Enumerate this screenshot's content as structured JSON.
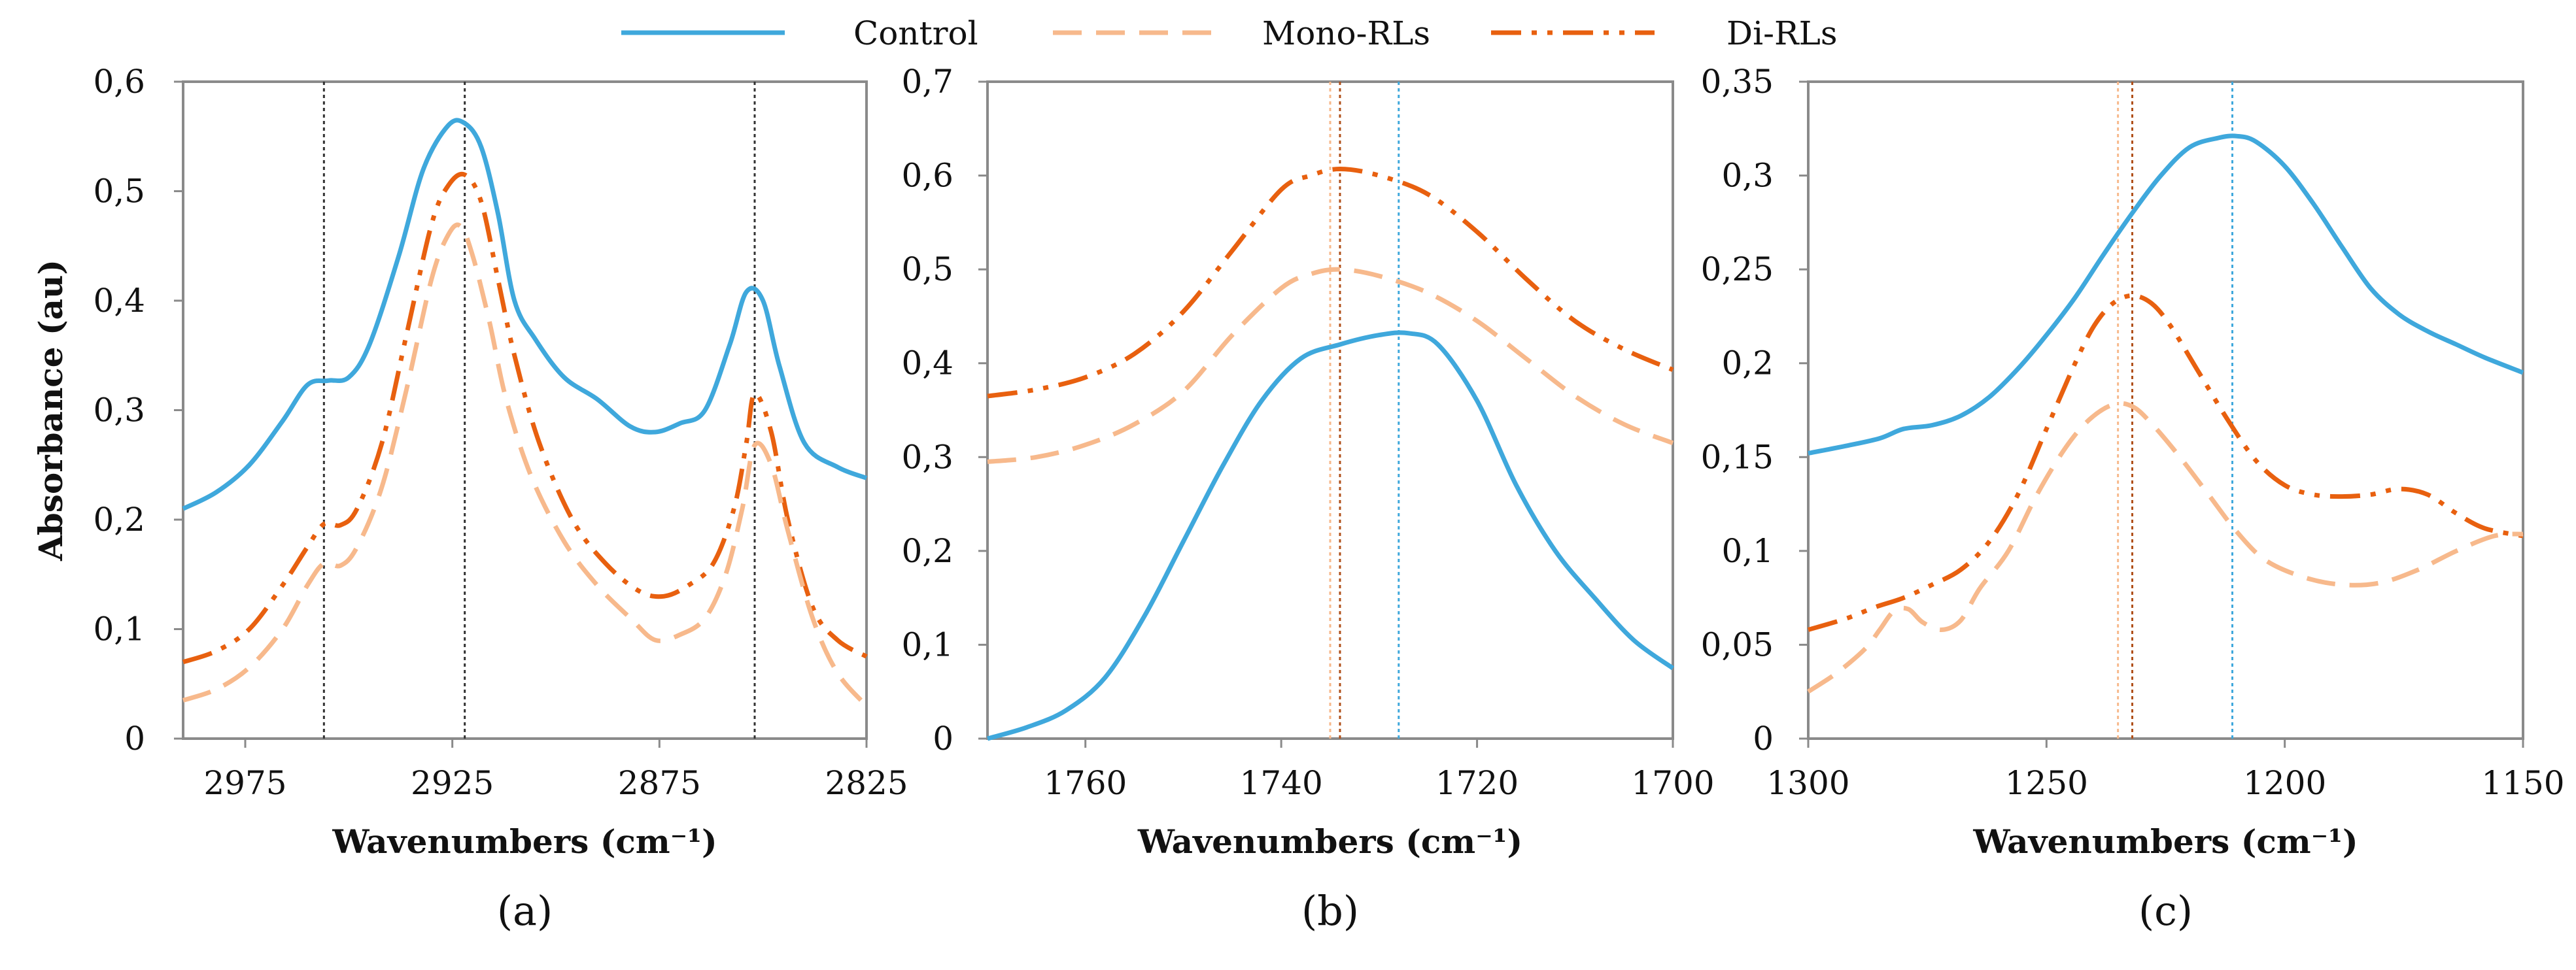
{
  "legend": [
    {
      "name": "Control",
      "color": "#3fa8dc",
      "style": "solid"
    },
    {
      "name": "Mono-RLs",
      "color": "#f7b98c",
      "style": "dashed"
    },
    {
      "name": "Di-RLs",
      "color": "#e8600f",
      "style": "dashdotdot"
    }
  ],
  "chart_data": [
    {
      "type": "line",
      "panel_label": "(a)",
      "xlabel": "Wavenumbers (cm⁻¹)",
      "ylabel": "Absorbance (au)",
      "xlim": [
        2990,
        2825
      ],
      "ylim": [
        0,
        0.6
      ],
      "xticks": [
        2975,
        2925,
        2875,
        2825
      ],
      "xtick_labels": [
        "2975",
        "2925",
        "2875",
        "2825"
      ],
      "yticks": [
        0,
        0.1,
        0.2,
        0.3,
        0.4,
        0.5,
        0.6
      ],
      "ytick_labels": [
        "0",
        "0,1",
        "0,2",
        "0,3",
        "0,4",
        "0,5",
        "0,6"
      ],
      "vlines": [
        {
          "x": 2956,
          "color": "#333333"
        },
        {
          "x": 2922,
          "color": "#333333"
        },
        {
          "x": 2852,
          "color": "#333333"
        }
      ],
      "series": [
        {
          "name": "Control",
          "x": [
            2990,
            2982,
            2974,
            2966,
            2960,
            2955,
            2950,
            2945,
            2938,
            2932,
            2926,
            2922,
            2918,
            2914,
            2910,
            2905,
            2898,
            2890,
            2882,
            2876,
            2870,
            2864,
            2858,
            2854,
            2850,
            2846,
            2840,
            2832,
            2825
          ],
          "values": [
            0.21,
            0.225,
            0.25,
            0.29,
            0.323,
            0.327,
            0.33,
            0.36,
            0.44,
            0.52,
            0.56,
            0.562,
            0.54,
            0.48,
            0.4,
            0.365,
            0.33,
            0.31,
            0.285,
            0.28,
            0.288,
            0.3,
            0.36,
            0.408,
            0.4,
            0.34,
            0.27,
            0.248,
            0.238
          ]
        },
        {
          "name": "Mono-RLs",
          "x": [
            2990,
            2982,
            2974,
            2966,
            2960,
            2956,
            2952,
            2948,
            2942,
            2936,
            2930,
            2926,
            2923,
            2920,
            2916,
            2912,
            2906,
            2898,
            2890,
            2882,
            2876,
            2870,
            2864,
            2859,
            2855,
            2852,
            2848,
            2844,
            2838,
            2832,
            2825
          ],
          "values": [
            0.035,
            0.045,
            0.065,
            0.1,
            0.14,
            0.16,
            0.158,
            0.175,
            0.23,
            0.32,
            0.42,
            0.46,
            0.468,
            0.44,
            0.38,
            0.31,
            0.24,
            0.18,
            0.14,
            0.11,
            0.09,
            0.095,
            0.11,
            0.15,
            0.21,
            0.268,
            0.25,
            0.19,
            0.11,
            0.06,
            0.03
          ]
        },
        {
          "name": "Di-RLs",
          "x": [
            2990,
            2982,
            2974,
            2966,
            2960,
            2956,
            2952,
            2948,
            2942,
            2936,
            2930,
            2926,
            2922,
            2918,
            2914,
            2910,
            2904,
            2896,
            2888,
            2880,
            2874,
            2868,
            2862,
            2857,
            2854,
            2852,
            2848,
            2844,
            2838,
            2832,
            2825
          ],
          "values": [
            0.07,
            0.08,
            0.1,
            0.14,
            0.175,
            0.196,
            0.195,
            0.21,
            0.27,
            0.37,
            0.47,
            0.505,
            0.515,
            0.49,
            0.42,
            0.35,
            0.27,
            0.2,
            0.16,
            0.135,
            0.13,
            0.14,
            0.16,
            0.21,
            0.27,
            0.315,
            0.28,
            0.2,
            0.12,
            0.09,
            0.075
          ]
        }
      ]
    },
    {
      "type": "line",
      "panel_label": "(b)",
      "xlabel": "Wavenumbers (cm⁻¹)",
      "ylabel": "",
      "xlim": [
        1770,
        1700
      ],
      "ylim": [
        0,
        0.7
      ],
      "xticks": [
        1760,
        1740,
        1720,
        1700
      ],
      "xtick_labels": [
        "1760",
        "1740",
        "1720",
        "1700"
      ],
      "yticks": [
        0,
        0.1,
        0.2,
        0.3,
        0.4,
        0.5,
        0.6,
        0.7
      ],
      "ytick_labels": [
        "0",
        "0,1",
        "0,2",
        "0,3",
        "0,4",
        "0,5",
        "0,6",
        "0,7"
      ],
      "vlines": [
        {
          "x": 1735,
          "color": "#f7b98c"
        },
        {
          "x": 1734,
          "color": "#b0501a"
        },
        {
          "x": 1728,
          "color": "#3fa8dc"
        }
      ],
      "series": [
        {
          "name": "Control",
          "x": [
            1770,
            1766,
            1762,
            1758,
            1754,
            1750,
            1746,
            1742,
            1738,
            1734,
            1730,
            1727,
            1724,
            1720,
            1716,
            1712,
            1708,
            1704,
            1700
          ],
          "values": [
            0,
            0.012,
            0.03,
            0.065,
            0.13,
            0.21,
            0.29,
            0.36,
            0.405,
            0.42,
            0.43,
            0.432,
            0.42,
            0.36,
            0.27,
            0.2,
            0.15,
            0.105,
            0.075
          ]
        },
        {
          "name": "Mono-RLs",
          "x": [
            1770,
            1765,
            1760,
            1755,
            1750,
            1745,
            1740,
            1737,
            1734,
            1730,
            1725,
            1720,
            1715,
            1710,
            1705,
            1700
          ],
          "values": [
            0.295,
            0.3,
            0.313,
            0.335,
            0.37,
            0.43,
            0.48,
            0.495,
            0.5,
            0.493,
            0.475,
            0.445,
            0.405,
            0.365,
            0.335,
            0.315
          ]
        },
        {
          "name": "Di-RLs",
          "x": [
            1770,
            1765,
            1760,
            1755,
            1750,
            1745,
            1740,
            1737,
            1734,
            1730,
            1725,
            1720,
            1715,
            1710,
            1705,
            1700
          ],
          "values": [
            0.365,
            0.372,
            0.385,
            0.41,
            0.455,
            0.52,
            0.585,
            0.6,
            0.607,
            0.6,
            0.58,
            0.54,
            0.49,
            0.445,
            0.415,
            0.393
          ]
        }
      ]
    },
    {
      "type": "line",
      "panel_label": "(c)",
      "xlabel": "Wavenumbers (cm⁻¹)",
      "ylabel": "",
      "xlim": [
        1300,
        1150
      ],
      "ylim": [
        0,
        0.35
      ],
      "xticks": [
        1300,
        1250,
        1200,
        1150
      ],
      "xtick_labels": [
        "1300",
        "1250",
        "1200",
        "1150"
      ],
      "yticks": [
        0,
        0.05,
        0.1,
        0.15,
        0.2,
        0.25,
        0.3,
        0.35
      ],
      "ytick_labels": [
        "0",
        "0,05",
        "0,1",
        "0,15",
        "0,2",
        "0,25",
        "0,3",
        "0,35"
      ],
      "vlines": [
        {
          "x": 1235,
          "color": "#f7b98c"
        },
        {
          "x": 1232,
          "color": "#b0501a"
        },
        {
          "x": 1211,
          "color": "#3fa8dc"
        }
      ],
      "series": [
        {
          "name": "Control",
          "x": [
            1300,
            1292,
            1285,
            1280,
            1274,
            1268,
            1262,
            1256,
            1250,
            1244,
            1238,
            1232,
            1226,
            1220,
            1214,
            1210,
            1206,
            1200,
            1194,
            1188,
            1182,
            1176,
            1170,
            1164,
            1158,
            1150
          ],
          "values": [
            0.152,
            0.156,
            0.16,
            0.165,
            0.167,
            0.172,
            0.182,
            0.197,
            0.215,
            0.235,
            0.258,
            0.28,
            0.3,
            0.315,
            0.32,
            0.321,
            0.318,
            0.305,
            0.285,
            0.262,
            0.24,
            0.226,
            0.217,
            0.21,
            0.203,
            0.195
          ]
        },
        {
          "name": "Mono-RLs",
          "x": [
            1300,
            1294,
            1288,
            1285,
            1282,
            1279,
            1276,
            1272,
            1268,
            1264,
            1258,
            1252,
            1246,
            1241,
            1236,
            1232,
            1228,
            1222,
            1216,
            1210,
            1204,
            1196,
            1188,
            1180,
            1172,
            1164,
            1156,
            1150
          ],
          "values": [
            0.025,
            0.035,
            0.048,
            0.058,
            0.068,
            0.069,
            0.062,
            0.058,
            0.063,
            0.08,
            0.1,
            0.13,
            0.155,
            0.17,
            0.178,
            0.177,
            0.168,
            0.15,
            0.13,
            0.11,
            0.095,
            0.086,
            0.082,
            0.083,
            0.09,
            0.1,
            0.108,
            0.109
          ]
        },
        {
          "name": "Di-RLs",
          "x": [
            1300,
            1292,
            1286,
            1280,
            1274,
            1268,
            1262,
            1256,
            1250,
            1244,
            1240,
            1236,
            1232,
            1228,
            1224,
            1218,
            1212,
            1206,
            1200,
            1194,
            1188,
            1182,
            1176,
            1170,
            1164,
            1158,
            1150
          ],
          "values": [
            0.058,
            0.064,
            0.07,
            0.075,
            0.082,
            0.09,
            0.105,
            0.13,
            0.165,
            0.2,
            0.22,
            0.232,
            0.236,
            0.232,
            0.22,
            0.195,
            0.17,
            0.148,
            0.135,
            0.13,
            0.129,
            0.13,
            0.133,
            0.13,
            0.12,
            0.112,
            0.108
          ]
        }
      ]
    }
  ]
}
